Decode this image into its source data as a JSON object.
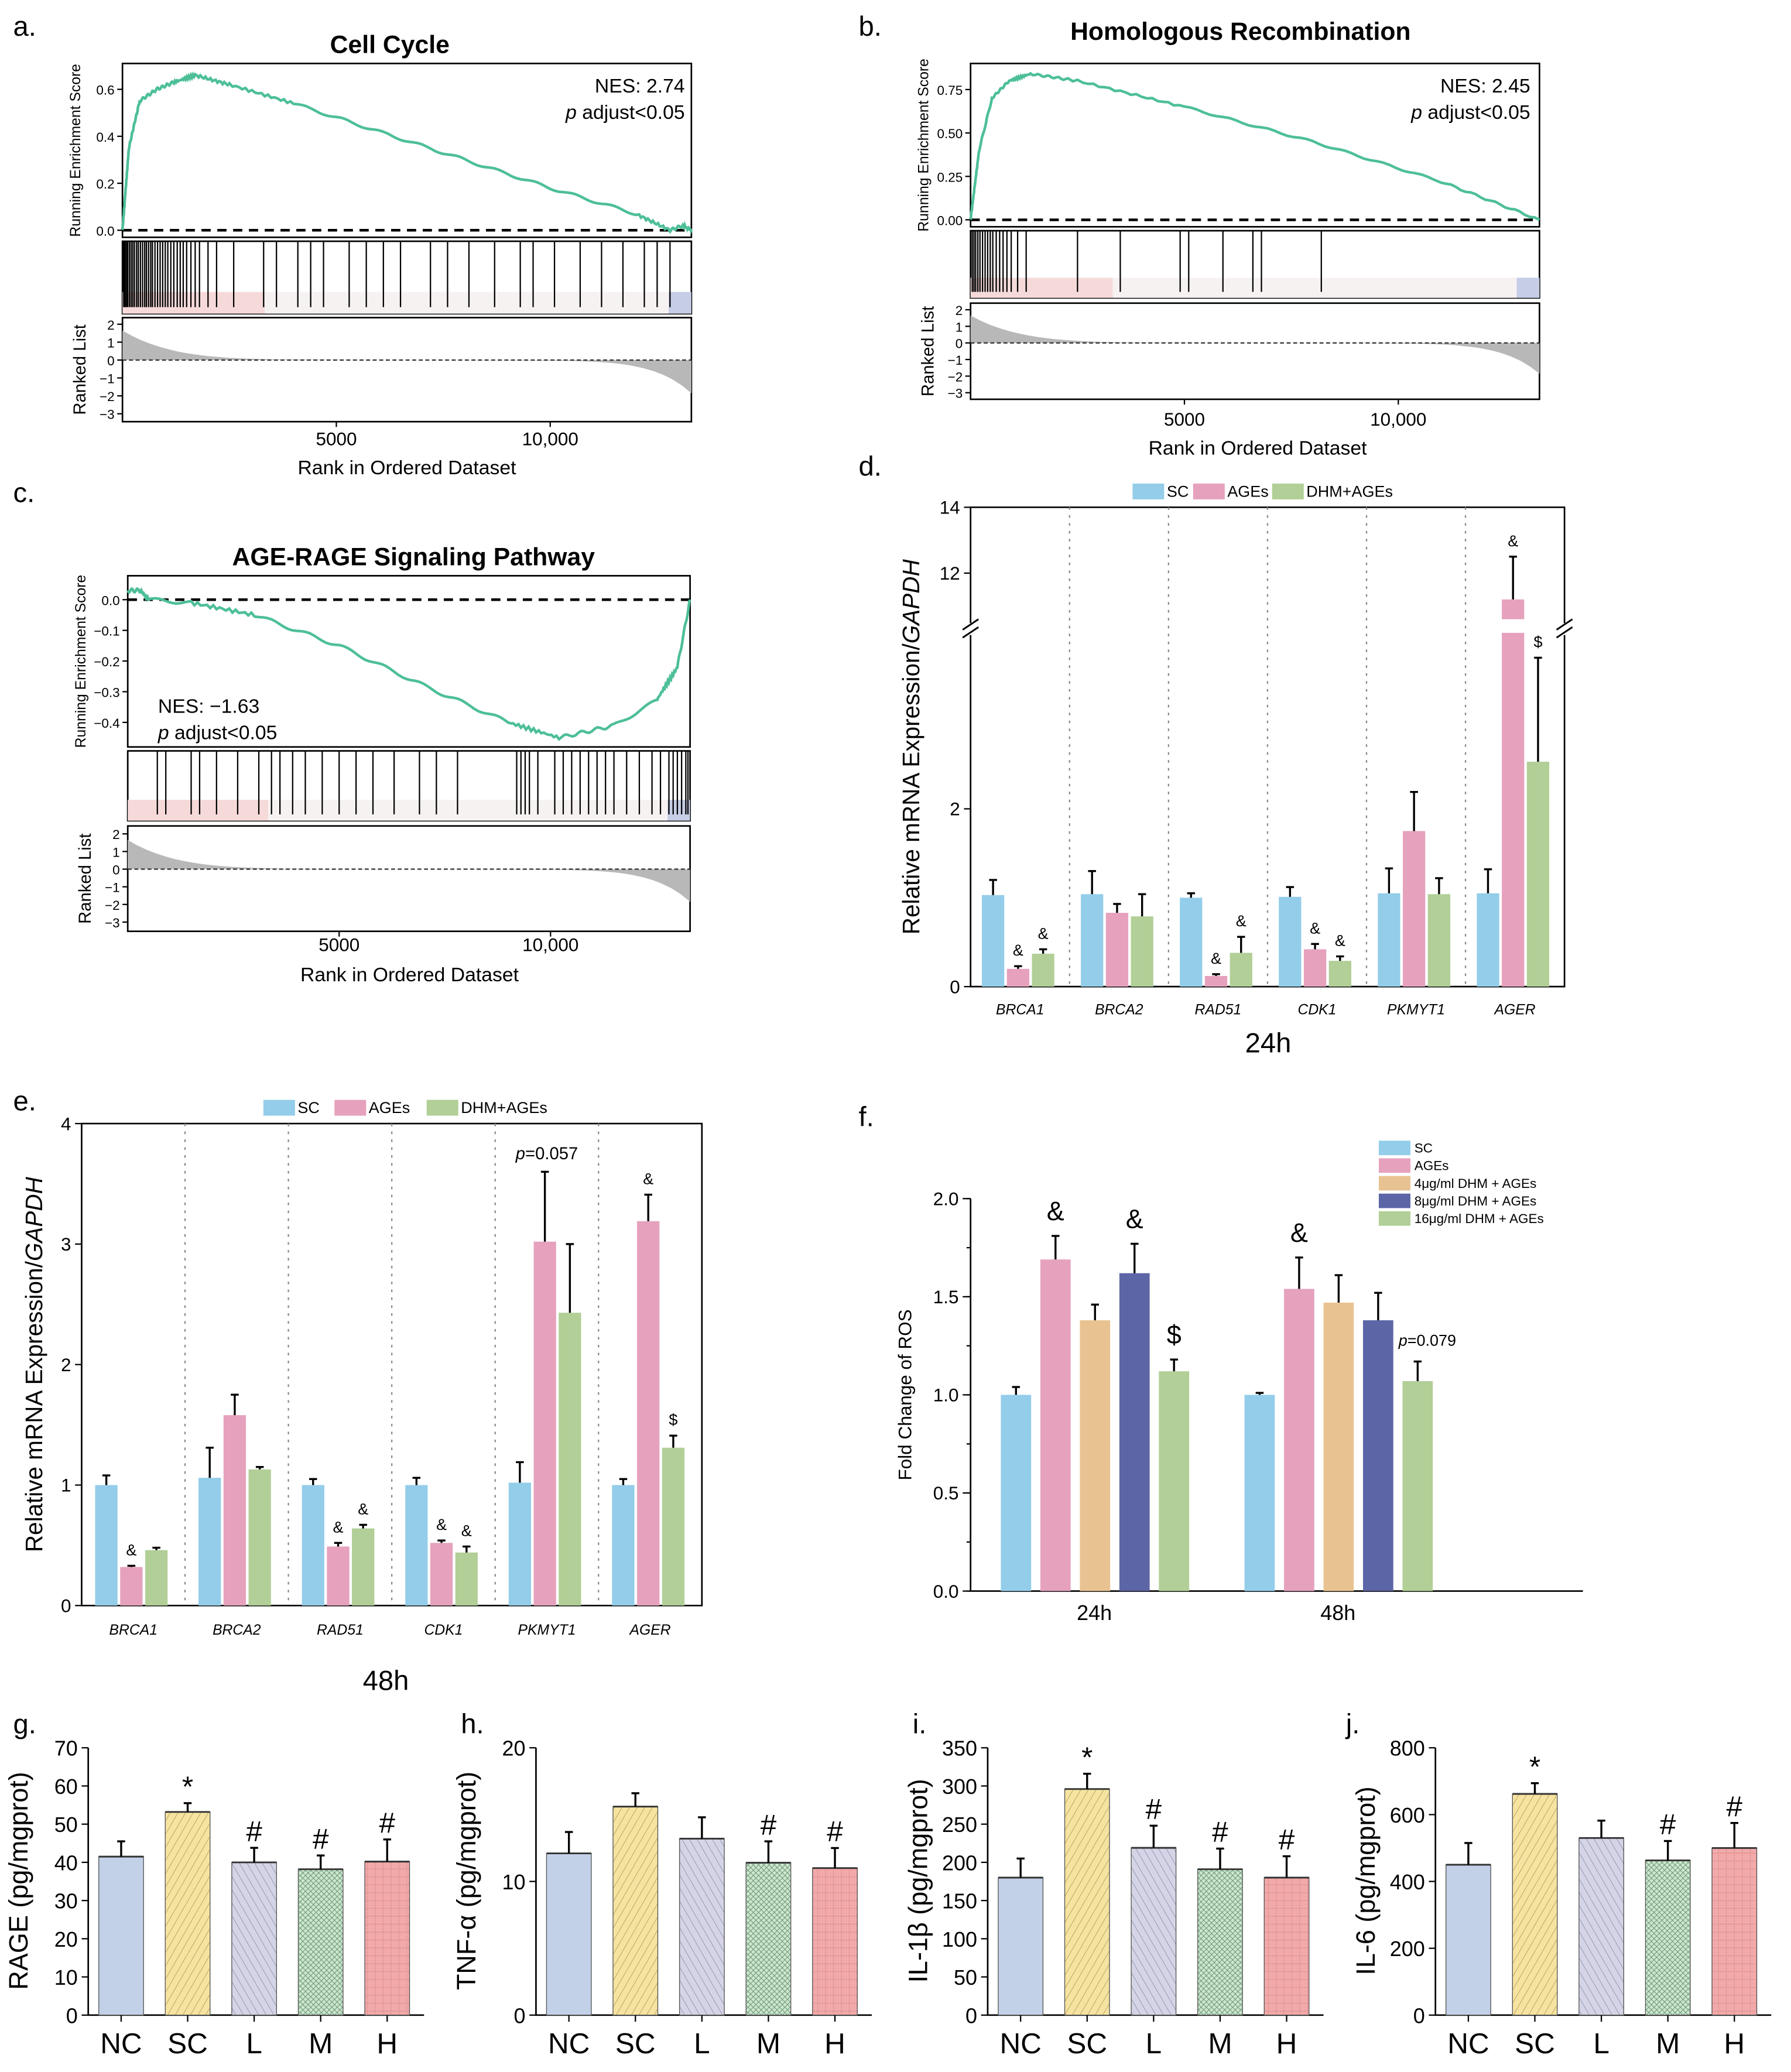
{
  "panel_labels": [
    "a.",
    "b.",
    "c.",
    "d.",
    "e.",
    "f.",
    "g.",
    "h.",
    "i.",
    "j."
  ],
  "chart_data": [
    {
      "id": "a",
      "type": "line",
      "title": "Cell Cycle",
      "ylabel": "Running Enrichment Score",
      "ylabel2": "Ranked List",
      "xlabel": "Rank in Ordered Dataset",
      "nes": "NES: 2.74",
      "padj_p": "p",
      "padj_rest": " adjust<0.05",
      "yticks": [
        "0.0",
        "0.2",
        "0.4",
        "0.6"
      ],
      "ytick_values": [
        0,
        0.2,
        0.4,
        0.6
      ],
      "ylim": [
        -0.03,
        0.71
      ],
      "xticks": [
        "5000",
        "10,000"
      ],
      "xtick_values": [
        5000,
        10000
      ],
      "xlim": [
        0,
        13300
      ],
      "rank_yticks": [
        "2",
        "1",
        "0",
        "−1",
        "−2",
        "−3"
      ],
      "es": [
        [
          0,
          0
        ],
        [
          150,
          0.35
        ],
        [
          400,
          0.55
        ],
        [
          800,
          0.6
        ],
        [
          1200,
          0.63
        ],
        [
          1700,
          0.66
        ],
        [
          2500,
          0.62
        ],
        [
          4000,
          0.54
        ],
        [
          6000,
          0.42
        ],
        [
          8000,
          0.3
        ],
        [
          10000,
          0.18
        ],
        [
          12000,
          0.07
        ],
        [
          12800,
          0.0
        ],
        [
          13100,
          0.02
        ],
        [
          13300,
          0
        ]
      ],
      "hits": [
        30,
        60,
        90,
        120,
        160,
        200,
        240,
        280,
        330,
        370,
        420,
        470,
        520,
        560,
        610,
        660,
        700,
        760,
        820,
        880,
        940,
        1000,
        1060,
        1130,
        1200,
        1280,
        1350,
        1420,
        1500,
        1600,
        1700,
        1800,
        2000,
        2200,
        2600,
        3300,
        3600,
        4100,
        4400,
        4700,
        5300,
        5700,
        6100,
        6500,
        7200,
        7600,
        8100,
        8700,
        9300,
        9600,
        10100,
        10700,
        11200,
        11700,
        12200,
        12500,
        12800
      ]
    },
    {
      "id": "b",
      "type": "line",
      "title": "Homologous Recombination",
      "ylabel": "Running Enrichment Score",
      "ylabel2": "Ranked List",
      "xlabel": "Rank in Ordered Dataset",
      "nes": "NES: 2.45",
      "padj_p": "p",
      "padj_rest": " adjust<0.05",
      "yticks": [
        "0.00",
        "0.25",
        "0.50",
        "0.75"
      ],
      "ytick_values": [
        0,
        0.25,
        0.5,
        0.75
      ],
      "ylim": [
        -0.04,
        0.9
      ],
      "xticks": [
        "5000",
        "10,000"
      ],
      "xtick_values": [
        5000,
        10000
      ],
      "xlim": [
        0,
        13300
      ],
      "rank_yticks": [
        "2",
        "1",
        "0",
        "−1",
        "−2",
        "−3"
      ],
      "es": [
        [
          0,
          0
        ],
        [
          200,
          0.4
        ],
        [
          500,
          0.7
        ],
        [
          900,
          0.8
        ],
        [
          1400,
          0.84
        ],
        [
          2500,
          0.8
        ],
        [
          5000,
          0.65
        ],
        [
          8000,
          0.45
        ],
        [
          11000,
          0.22
        ],
        [
          13300,
          0
        ]
      ],
      "hits": [
        40,
        80,
        120,
        170,
        220,
        280,
        340,
        400,
        460,
        520,
        600,
        680,
        760,
        850,
        950,
        1100,
        1300,
        2500,
        3500,
        4900,
        5100,
        5900,
        6600,
        6800,
        8200
      ]
    },
    {
      "id": "c",
      "type": "line",
      "title": "AGE-RAGE Signaling Pathway",
      "ylabel": "Running Enrichment Score",
      "ylabel2": "Ranked List",
      "xlabel": "Rank in Ordered Dataset",
      "nes": "NES: −1.63",
      "padj_p": "p",
      "padj_rest": " adjust<0.05",
      "yticks": [
        "0.0",
        "−0.1",
        "−0.2",
        "−0.3",
        "−0.4"
      ],
      "ytick_values": [
        0,
        -0.1,
        -0.2,
        -0.3,
        -0.4
      ],
      "ylim": [
        -0.48,
        0.078
      ],
      "xticks": [
        "5000",
        "10,000"
      ],
      "xtick_values": [
        5000,
        10000
      ],
      "xlim": [
        0,
        13300
      ],
      "rank_yticks": [
        "2",
        "1",
        "0",
        "−1",
        "−2",
        "−3"
      ],
      "es": [
        [
          0,
          0.03
        ],
        [
          300,
          0.03
        ],
        [
          500,
          0.0
        ],
        [
          1500,
          -0.01
        ],
        [
          3000,
          -0.05
        ],
        [
          5000,
          -0.15
        ],
        [
          7000,
          -0.28
        ],
        [
          9000,
          -0.4
        ],
        [
          10200,
          -0.45
        ],
        [
          11500,
          -0.41
        ],
        [
          12500,
          -0.33
        ],
        [
          13000,
          -0.22
        ],
        [
          13300,
          0
        ]
      ],
      "hits": [
        700,
        900,
        1500,
        1700,
        2100,
        2600,
        3100,
        3400,
        3600,
        3900,
        4200,
        4600,
        5000,
        5400,
        5800,
        6300,
        6900,
        7300,
        7800,
        9200,
        9300,
        9400,
        9500,
        9700,
        10100,
        10300,
        10500,
        10700,
        10900,
        11100,
        11300,
        11500,
        11800,
        12100,
        12400,
        12600,
        12800,
        12900,
        13000,
        13100,
        13200,
        13250
      ]
    },
    {
      "id": "d",
      "type": "bar",
      "xlabel": "24h",
      "ylabel_pre": "Relative mRNA Expression/",
      "ylabel_it": "GAPDH",
      "series_names": [
        "SC",
        "AGEs",
        "DHM+AGEs"
      ],
      "categories": [
        "BRCA1",
        "BRCA2",
        "RAD51",
        "CDK1",
        "PKMYT1",
        "AGER"
      ],
      "yticks": [
        "0",
        "2",
        "12",
        "14"
      ],
      "ytick_values": [
        0,
        2,
        12,
        14
      ],
      "y_break": [
        3.98,
        10.6
      ],
      "values": [
        [
          1.03,
          0.2,
          0.37
        ],
        [
          1.04,
          0.83,
          0.79
        ],
        [
          1.0,
          0.12,
          0.38
        ],
        [
          1.01,
          0.42,
          0.29
        ],
        [
          1.05,
          1.75,
          1.04
        ],
        [
          1.05,
          11.2,
          2.53
        ]
      ],
      "errors": [
        [
          0.17,
          0.03,
          0.05
        ],
        [
          0.26,
          0.1,
          0.25
        ],
        [
          0.05,
          0.02,
          0.18
        ],
        [
          0.11,
          0.06,
          0.05
        ],
        [
          0.28,
          0.44,
          0.18
        ],
        [
          0.27,
          1.3,
          1.17
        ]
      ],
      "annotations": [
        [
          "",
          "&",
          "&"
        ],
        [
          "",
          "",
          ""
        ],
        [
          "",
          "&",
          "&"
        ],
        [
          "",
          "&",
          "&"
        ],
        [
          "",
          "",
          ""
        ],
        [
          "",
          "&",
          "$"
        ]
      ]
    },
    {
      "id": "e",
      "type": "bar",
      "xlabel": "48h",
      "ylabel_pre": "Relative mRNA Expression/",
      "ylabel_it": "GAPDH",
      "series_names": [
        "SC",
        "AGEs",
        "DHM+AGEs"
      ],
      "categories": [
        "BRCA1",
        "BRCA2",
        "RAD51",
        "CDK1",
        "PKMYT1",
        "AGER"
      ],
      "yticks": [
        "0",
        "1",
        "2",
        "3",
        "4"
      ],
      "ytick_values": [
        0,
        1,
        2,
        3,
        4
      ],
      "ylim": [
        0,
        4
      ],
      "values": [
        [
          1.0,
          0.32,
          0.46
        ],
        [
          1.06,
          1.58,
          1.13
        ],
        [
          1.0,
          0.49,
          0.64
        ],
        [
          1.0,
          0.52,
          0.44
        ],
        [
          1.02,
          3.02,
          2.43
        ],
        [
          1.0,
          3.19,
          1.31
        ]
      ],
      "errors": [
        [
          0.08,
          0.01,
          0.02
        ],
        [
          0.25,
          0.17,
          0.02
        ],
        [
          0.05,
          0.03,
          0.03
        ],
        [
          0.06,
          0.02,
          0.05
        ],
        [
          0.17,
          0.58,
          0.57
        ],
        [
          0.05,
          0.22,
          0.1
        ]
      ],
      "annotations": [
        [
          "",
          "&",
          ""
        ],
        [
          "",
          "",
          ""
        ],
        [
          "",
          "&",
          "&"
        ],
        [
          "",
          "&",
          "&"
        ],
        [
          "",
          "",
          ""
        ],
        [
          "",
          "&",
          "$"
        ]
      ],
      "group_note_p": "p",
      "group_note_rest": "=0.057"
    },
    {
      "id": "f",
      "type": "bar",
      "ylabel": "Fold Change of ROS",
      "series_names": [
        "SC",
        "AGEs",
        "4μg/ml DHM + AGEs",
        "8μg/ml DHM + AGEs",
        "16μg/ml DHM + AGEs"
      ],
      "categories": [
        "24h",
        "48h"
      ],
      "yticks": [
        "0.0",
        "0.5",
        "1.0",
        "1.5",
        "2.0"
      ],
      "ytick_values": [
        0,
        0.5,
        1,
        1.5,
        2
      ],
      "ylim": [
        0,
        2
      ],
      "values": [
        [
          1.0,
          1.69,
          1.38,
          1.62,
          1.12
        ],
        [
          1.0,
          1.54,
          1.47,
          1.38,
          1.07
        ]
      ],
      "errors": [
        [
          0.04,
          0.12,
          0.08,
          0.15,
          0.06
        ],
        [
          0.01,
          0.16,
          0.14,
          0.14,
          0.1
        ]
      ],
      "annotations": [
        [
          "",
          "&",
          "",
          "&",
          "$"
        ],
        [
          "",
          "&",
          "",
          "",
          ""
        ]
      ],
      "note_p": "p",
      "note_rest": "=0.079"
    },
    {
      "id": "g",
      "type": "bar",
      "ylabel": "RAGE (pg/mgprot)",
      "categories": [
        "NC",
        "SC",
        "L",
        "M",
        "H"
      ],
      "yticks": [
        "0",
        "10",
        "20",
        "30",
        "40",
        "50",
        "60",
        "70"
      ],
      "ytick_values": [
        0,
        10,
        20,
        30,
        40,
        50,
        60,
        70
      ],
      "ylim": [
        0,
        70
      ],
      "values": [
        41.5,
        53.2,
        40.0,
        38.2,
        40.2
      ],
      "errors": [
        4.0,
        2.3,
        3.8,
        3.6,
        5.8
      ],
      "annotations": [
        "",
        "*",
        "#",
        "#",
        "#"
      ]
    },
    {
      "id": "h",
      "type": "bar",
      "ylabel": "TNF-α (pg/mgprot)",
      "categories": [
        "NC",
        "SC",
        "L",
        "M",
        "H"
      ],
      "yticks": [
        "0",
        "10",
        "20"
      ],
      "ytick_values": [
        0,
        10,
        20
      ],
      "ylim": [
        0,
        20
      ],
      "values": [
        12.1,
        15.6,
        13.2,
        11.4,
        11.0
      ],
      "errors": [
        1.6,
        1.0,
        1.6,
        1.6,
        1.5
      ],
      "annotations": [
        "",
        "",
        "",
        "#",
        "#"
      ]
    },
    {
      "id": "i",
      "type": "bar",
      "ylabel": "IL-1β (pg/mgprot)",
      "categories": [
        "NC",
        "SC",
        "L",
        "M",
        "H"
      ],
      "yticks": [
        "0",
        "50",
        "100",
        "150",
        "200",
        "250",
        "300",
        "350"
      ],
      "ytick_values": [
        0,
        50,
        100,
        150,
        200,
        250,
        300,
        350
      ],
      "ylim": [
        0,
        350
      ],
      "values": [
        180,
        296,
        219,
        191,
        180
      ],
      "errors": [
        25,
        20,
        29,
        27,
        28
      ],
      "annotations": [
        "",
        "*",
        "#",
        "#",
        "#"
      ]
    },
    {
      "id": "j",
      "type": "bar",
      "ylabel": "IL-6 (pg/mgprot)",
      "categories": [
        "NC",
        "SC",
        "L",
        "M",
        "H"
      ],
      "yticks": [
        "0",
        "200",
        "400",
        "600",
        "800"
      ],
      "ytick_values": [
        0,
        200,
        400,
        600,
        800
      ],
      "ylim": [
        0,
        800
      ],
      "values": [
        450,
        662,
        530,
        463,
        500
      ],
      "errors": [
        65,
        32,
        52,
        58,
        75
      ],
      "annotations": [
        "",
        "*",
        "",
        "#",
        "#"
      ]
    }
  ],
  "colors": {
    "es_line": "#4dbf97",
    "rna": [
      "#93cdea",
      "#e6a1bd",
      "#b1cf96"
    ],
    "ros": [
      "#93cdea",
      "#e6a1bd",
      "#e8c391",
      "#5c65a6",
      "#b1cf96"
    ],
    "elisa": [
      "#c3d1e8",
      "#f6e3a0",
      "#d4d4e6",
      "#cce6cf",
      "#f2a9a9"
    ]
  }
}
